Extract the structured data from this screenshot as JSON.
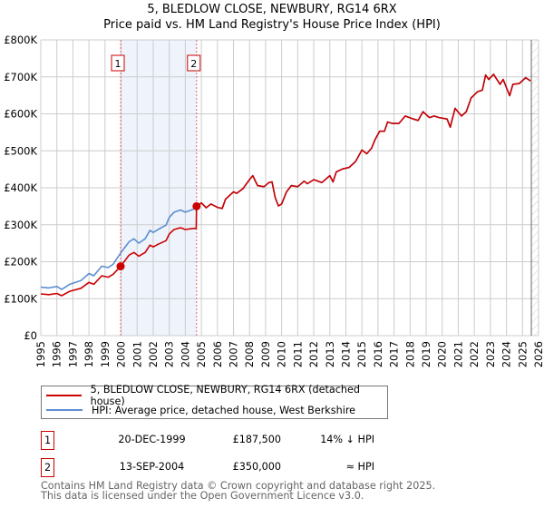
{
  "chart_data": {
    "type": "line",
    "title": "5, BLEDLOW CLOSE, NEWBURY, RG14 6RX",
    "subtitle": "Price paid vs. HM Land Registry's House Price Index (HPI)",
    "xlim": [
      1995,
      2026
    ],
    "ylim": [
      0,
      800000
    ],
    "x_ticks": [
      "1995",
      "1996",
      "1997",
      "1998",
      "1999",
      "2000",
      "2001",
      "2002",
      "2003",
      "2004",
      "2005",
      "2006",
      "2007",
      "2008",
      "2009",
      "2010",
      "2011",
      "2012",
      "2013",
      "2014",
      "2015",
      "2016",
      "2017",
      "2018",
      "2019",
      "2020",
      "2021",
      "2022",
      "2023",
      "2024",
      "2025",
      "2026"
    ],
    "y_ticks": [
      {
        "v": 0,
        "label": "£0"
      },
      {
        "v": 100000,
        "label": "£100K"
      },
      {
        "v": 200000,
        "label": "£200K"
      },
      {
        "v": 300000,
        "label": "£300K"
      },
      {
        "v": 400000,
        "label": "£400K"
      },
      {
        "v": 500000,
        "label": "£500K"
      },
      {
        "v": 600000,
        "label": "£600K"
      },
      {
        "v": 700000,
        "label": "£700K"
      },
      {
        "v": 800000,
        "label": "£800K"
      }
    ],
    "grid": true,
    "shaded_period": [
      1999.97,
      2004.7
    ],
    "forecast_from": 2025.55,
    "series": [
      {
        "name": "5, BLEDLOW CLOSE, NEWBURY, RG14 6RX (detached house)",
        "color": "#cc0000",
        "points": [
          [
            1995,
            113
          ],
          [
            1995.5,
            111
          ],
          [
            1996,
            114
          ],
          [
            1996.3,
            108
          ],
          [
            1996.8,
            120
          ],
          [
            1997.5,
            128
          ],
          [
            1998,
            144
          ],
          [
            1998.3,
            139
          ],
          [
            1998.8,
            162
          ],
          [
            1999.2,
            158
          ],
          [
            1999.5,
            166
          ],
          [
            1999.97,
            187.5
          ],
          [
            2000.5,
            218
          ],
          [
            2000.8,
            225
          ],
          [
            2001.1,
            215
          ],
          [
            2001.5,
            225
          ],
          [
            2001.8,
            245
          ],
          [
            2002,
            240
          ],
          [
            2002.3,
            247
          ],
          [
            2002.8,
            257
          ],
          [
            2003,
            275
          ],
          [
            2003.3,
            287
          ],
          [
            2003.7,
            292
          ],
          [
            2004,
            287
          ],
          [
            2004.5,
            290
          ],
          [
            2004.68,
            290
          ],
          [
            2004.7,
            350
          ],
          [
            2005,
            359
          ],
          [
            2005.3,
            346
          ],
          [
            2005.6,
            356
          ],
          [
            2006,
            347
          ],
          [
            2006.3,
            344
          ],
          [
            2006.5,
            369
          ],
          [
            2007,
            389
          ],
          [
            2007.2,
            385
          ],
          [
            2007.6,
            398
          ],
          [
            2008,
            422
          ],
          [
            2008.2,
            433
          ],
          [
            2008.5,
            406
          ],
          [
            2008.9,
            403
          ],
          [
            2009.2,
            414
          ],
          [
            2009.4,
            416
          ],
          [
            2009.6,
            373
          ],
          [
            2009.8,
            351
          ],
          [
            2010,
            356
          ],
          [
            2010.3,
            389
          ],
          [
            2010.6,
            406
          ],
          [
            2011,
            403
          ],
          [
            2011.4,
            418
          ],
          [
            2011.6,
            411
          ],
          [
            2012,
            422
          ],
          [
            2012.5,
            414
          ],
          [
            2013,
            433
          ],
          [
            2013.2,
            416
          ],
          [
            2013.4,
            443
          ],
          [
            2013.8,
            451
          ],
          [
            2014.2,
            455
          ],
          [
            2014.6,
            471
          ],
          [
            2015,
            502
          ],
          [
            2015.3,
            492
          ],
          [
            2015.6,
            507
          ],
          [
            2015.8,
            529
          ],
          [
            2016.1,
            553
          ],
          [
            2016.4,
            553
          ],
          [
            2016.6,
            578
          ],
          [
            2016.9,
            574
          ],
          [
            2017.3,
            574
          ],
          [
            2017.7,
            594
          ],
          [
            2018.2,
            586
          ],
          [
            2018.5,
            582
          ],
          [
            2018.8,
            606
          ],
          [
            2019.2,
            590
          ],
          [
            2019.5,
            594
          ],
          [
            2019.8,
            590
          ],
          [
            2020.3,
            586
          ],
          [
            2020.5,
            564
          ],
          [
            2020.8,
            615
          ],
          [
            2021.2,
            594
          ],
          [
            2021.5,
            606
          ],
          [
            2021.8,
            643
          ],
          [
            2022.2,
            660
          ],
          [
            2022.5,
            664
          ],
          [
            2022.7,
            705
          ],
          [
            2022.9,
            693
          ],
          [
            2023.2,
            707
          ],
          [
            2023.6,
            680
          ],
          [
            2023.8,
            693
          ],
          [
            2024.2,
            649
          ],
          [
            2024.4,
            680
          ],
          [
            2024.8,
            682
          ],
          [
            2025.2,
            698
          ],
          [
            2025.5,
            689
          ]
        ]
      },
      {
        "name": "HPI: Average price, detached house, West Berkshire",
        "color": "#5b8fd0",
        "points": [
          [
            1995,
            131
          ],
          [
            1995.5,
            129
          ],
          [
            1996,
            133
          ],
          [
            1996.3,
            125
          ],
          [
            1996.8,
            139
          ],
          [
            1997.5,
            149
          ],
          [
            1998,
            168
          ],
          [
            1998.3,
            162
          ],
          [
            1998.8,
            188
          ],
          [
            1999.2,
            184
          ],
          [
            1999.5,
            193
          ],
          [
            2000,
            225
          ],
          [
            2000.5,
            254
          ],
          [
            2000.8,
            262
          ],
          [
            2001.1,
            250
          ],
          [
            2001.5,
            262
          ],
          [
            2001.8,
            285
          ],
          [
            2002,
            279
          ],
          [
            2002.3,
            287
          ],
          [
            2002.8,
            299
          ],
          [
            2003,
            320
          ],
          [
            2003.3,
            334
          ],
          [
            2003.7,
            340
          ],
          [
            2004,
            334
          ],
          [
            2004.5,
            342
          ],
          [
            2004.7,
            350
          ],
          [
            2005,
            359
          ],
          [
            2005.3,
            346
          ],
          [
            2005.6,
            356
          ],
          [
            2006,
            347
          ],
          [
            2006.3,
            344
          ],
          [
            2006.5,
            369
          ],
          [
            2007,
            389
          ],
          [
            2007.2,
            385
          ],
          [
            2007.6,
            398
          ],
          [
            2008,
            422
          ],
          [
            2008.2,
            433
          ],
          [
            2008.5,
            406
          ],
          [
            2008.9,
            403
          ],
          [
            2009.2,
            414
          ],
          [
            2009.4,
            416
          ],
          [
            2009.6,
            373
          ],
          [
            2009.8,
            351
          ],
          [
            2010,
            356
          ],
          [
            2010.3,
            389
          ],
          [
            2010.6,
            406
          ],
          [
            2011,
            403
          ],
          [
            2011.4,
            418
          ],
          [
            2011.6,
            411
          ],
          [
            2012,
            422
          ],
          [
            2012.5,
            414
          ],
          [
            2013,
            433
          ],
          [
            2013.2,
            416
          ],
          [
            2013.4,
            443
          ],
          [
            2013.8,
            451
          ],
          [
            2014.2,
            455
          ],
          [
            2014.6,
            471
          ],
          [
            2015,
            502
          ],
          [
            2015.3,
            492
          ],
          [
            2015.6,
            507
          ],
          [
            2015.8,
            529
          ],
          [
            2016.1,
            553
          ],
          [
            2016.4,
            553
          ],
          [
            2016.6,
            578
          ],
          [
            2016.9,
            574
          ],
          [
            2017.3,
            574
          ],
          [
            2017.7,
            594
          ],
          [
            2018.2,
            586
          ],
          [
            2018.5,
            582
          ],
          [
            2018.8,
            606
          ],
          [
            2019.2,
            590
          ],
          [
            2019.5,
            594
          ],
          [
            2019.8,
            590
          ],
          [
            2020.3,
            586
          ],
          [
            2020.5,
            564
          ],
          [
            2020.8,
            615
          ],
          [
            2021.2,
            594
          ],
          [
            2021.5,
            606
          ],
          [
            2021.8,
            643
          ],
          [
            2022.2,
            660
          ],
          [
            2022.5,
            664
          ],
          [
            2022.7,
            705
          ],
          [
            2022.9,
            693
          ],
          [
            2023.2,
            707
          ],
          [
            2023.6,
            680
          ],
          [
            2023.8,
            693
          ],
          [
            2024.2,
            649
          ],
          [
            2024.4,
            680
          ],
          [
            2024.8,
            682
          ],
          [
            2025.2,
            698
          ],
          [
            2025.5,
            689
          ]
        ]
      }
    ],
    "value_units": "thousands GBP",
    "sales": [
      {
        "label": "1",
        "x": 1999.97,
        "y": 187.5
      },
      {
        "label": "2",
        "x": 2004.7,
        "y": 350
      }
    ]
  },
  "legend": {
    "price_paid": "5, BLEDLOW CLOSE, NEWBURY, RG14 6RX (detached house)",
    "hpi": "HPI: Average price, detached house, West Berkshire"
  },
  "transactions": [
    {
      "num": "1",
      "date": "20-DEC-1999",
      "price": "£187,500",
      "hpi": "14% ↓ HPI"
    },
    {
      "num": "2",
      "date": "13-SEP-2004",
      "price": "£350,000",
      "hpi": "≈ HPI"
    }
  ],
  "footer": {
    "line1": "Contains HM Land Registry data © Crown copyright and database right 2025.",
    "line2": "This data is licensed under the Open Government Licence v3.0."
  }
}
